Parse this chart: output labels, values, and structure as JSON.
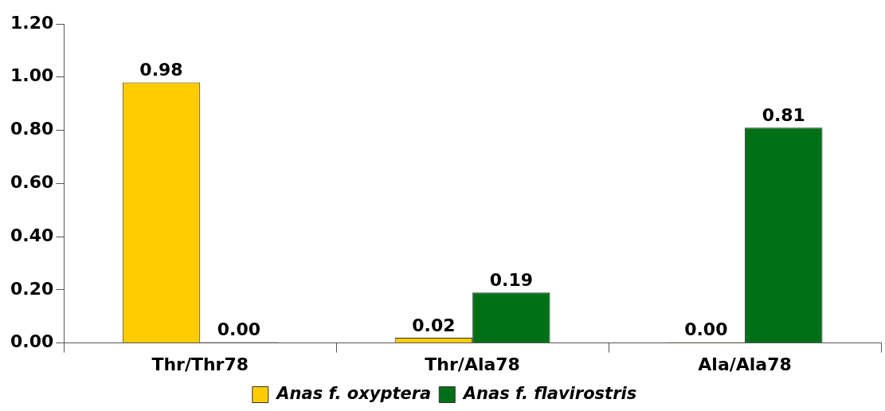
{
  "chart_data": {
    "type": "bar",
    "categories": [
      "Thr/Thr78",
      "Thr/Ala78",
      "Ala/Ala78"
    ],
    "series": [
      {
        "name": "Anas f. oxyptera",
        "color": "#ffcc00",
        "values": [
          0.98,
          0.02,
          0
        ],
        "value_labels": [
          "0.98",
          "0.02",
          "0.00"
        ]
      },
      {
        "name": "Anas f. flavirostris",
        "color": "#007016",
        "values": [
          0,
          0.19,
          0.81
        ],
        "value_labels": [
          "0.00",
          "0.19",
          "0.81"
        ]
      }
    ],
    "ylim": [
      0,
      1.2
    ],
    "yticks": [
      {
        "value": 0,
        "label": "0.00"
      },
      {
        "value": 0.2,
        "label": "0.20"
      },
      {
        "value": 0.4,
        "label": "0.40"
      },
      {
        "value": 0.6,
        "label": "0.60"
      },
      {
        "value": 0.8,
        "label": "0.80"
      },
      {
        "value": 1,
        "label": "1.00"
      },
      {
        "value": 1.2,
        "label": "1.20"
      }
    ],
    "grid": false,
    "legend": "bottom"
  }
}
